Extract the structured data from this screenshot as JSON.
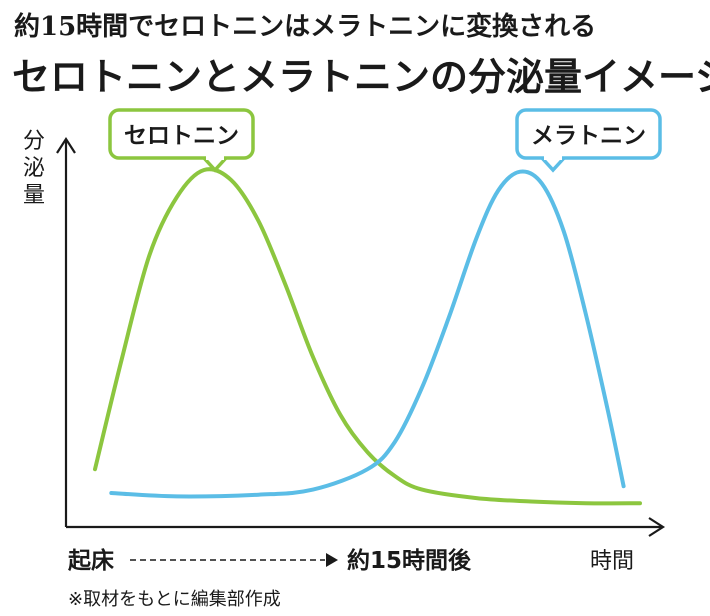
{
  "subtitle": "約15時間でセロトニンはメラトニンに変換される",
  "title": "セロトニンとメラトニンの分泌量イメージ",
  "note": "※取材をもとに編集部作成",
  "colors": {
    "serotonin": "#8cc63f",
    "melatonin": "#5bbde6",
    "axis": "#1a1a1a"
  },
  "chart_data": {
    "type": "line",
    "ylabel": "分泌量",
    "xlabel": "時間",
    "x_start_label": "起床",
    "x_end_label": "約15時間後",
    "grid": false,
    "series": [
      {
        "name": "セロトニン",
        "color": "#8cc63f",
        "points": [
          [
            0.0,
            0.12
          ],
          [
            0.05,
            0.45
          ],
          [
            0.1,
            0.75
          ],
          [
            0.15,
            0.92
          ],
          [
            0.2,
            1.0
          ],
          [
            0.25,
            0.97
          ],
          [
            0.3,
            0.85
          ],
          [
            0.35,
            0.66
          ],
          [
            0.4,
            0.45
          ],
          [
            0.45,
            0.28
          ],
          [
            0.5,
            0.17
          ],
          [
            0.55,
            0.1
          ],
          [
            0.6,
            0.06
          ],
          [
            0.7,
            0.035
          ],
          [
            0.8,
            0.025
          ],
          [
            0.9,
            0.02
          ],
          [
            1.0,
            0.02
          ]
        ]
      },
      {
        "name": "メラトニン",
        "color": "#5bbde6",
        "points": [
          [
            0.03,
            0.05
          ],
          [
            0.15,
            0.04
          ],
          [
            0.3,
            0.045
          ],
          [
            0.4,
            0.06
          ],
          [
            0.5,
            0.12
          ],
          [
            0.55,
            0.2
          ],
          [
            0.6,
            0.36
          ],
          [
            0.65,
            0.57
          ],
          [
            0.7,
            0.8
          ],
          [
            0.74,
            0.94
          ],
          [
            0.78,
            0.995
          ],
          [
            0.82,
            0.96
          ],
          [
            0.86,
            0.82
          ],
          [
            0.9,
            0.58
          ],
          [
            0.94,
            0.3
          ],
          [
            0.97,
            0.07
          ]
        ]
      }
    ]
  }
}
